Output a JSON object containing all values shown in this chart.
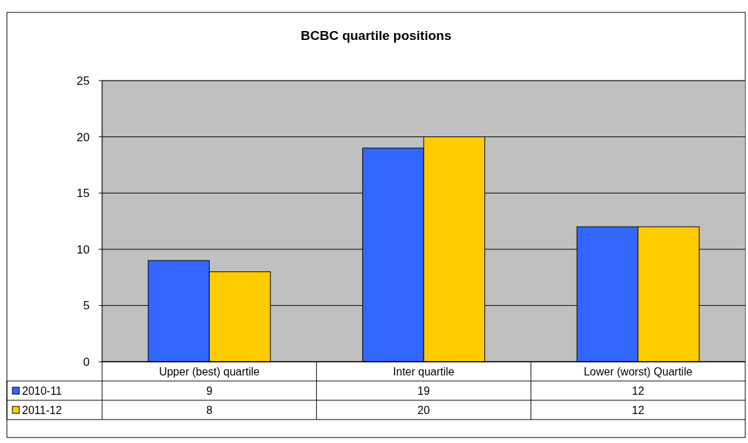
{
  "chart_data": {
    "type": "bar",
    "title": "BCBC quartile positions",
    "categories": [
      "Upper (best) quartile",
      "Inter quartile",
      "Lower (worst) Quartile"
    ],
    "series": [
      {
        "name": "2010-11",
        "color": "#3366ff",
        "values": [
          9,
          19,
          12
        ]
      },
      {
        "name": "2011-12",
        "color": "#ffcc00",
        "values": [
          8,
          20,
          12
        ]
      }
    ],
    "ylim": [
      0,
      25
    ],
    "yticks": [
      0,
      5,
      10,
      15,
      20,
      25
    ],
    "grid": "y",
    "legend": "bottom",
    "data_labels": true
  }
}
